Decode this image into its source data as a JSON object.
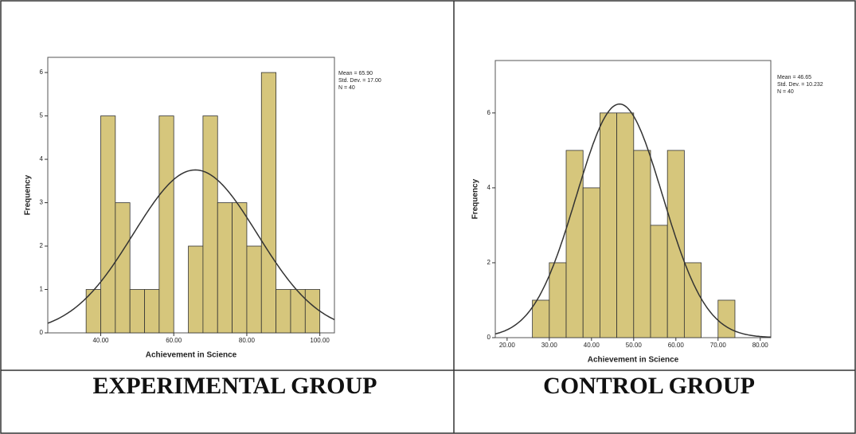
{
  "chart_data": [
    {
      "type": "histogram",
      "caption": "EXPERIMENTAL GROUP",
      "x_label": "Achievement in Science",
      "y_label": "Frequency",
      "bins": [
        36,
        40,
        44,
        48,
        52,
        56,
        60,
        64,
        68,
        72,
        76,
        80,
        84,
        88,
        92,
        96,
        100
      ],
      "values": [
        1,
        5,
        3,
        1,
        1,
        5,
        0,
        2,
        5,
        3,
        3,
        2,
        6,
        1,
        1,
        1
      ],
      "color": "#d6c67c",
      "xlim": [
        25.5,
        104
      ],
      "xticks": [
        {
          "value": 40,
          "label": "40.00"
        },
        {
          "value": 60,
          "label": "60.00"
        },
        {
          "value": 80,
          "label": "80.00"
        },
        {
          "value": 100,
          "label": "100.00"
        }
      ],
      "ylim": [
        0,
        6.35
      ],
      "yticks": [
        0,
        1,
        2,
        3,
        4,
        5,
        6
      ],
      "stats": {
        "mean": {
          "value": 65.9,
          "label": "Mean = 65.90"
        },
        "sd": {
          "value": 17.0,
          "label": "Std. Dev. = 17.00"
        },
        "n": {
          "value": 40,
          "label": "N = 40"
        }
      }
    },
    {
      "type": "histogram",
      "caption": "CONTROL GROUP",
      "x_label": "Achievement in Science",
      "y_label": "Frequency",
      "bins": [
        26,
        30,
        34,
        38,
        42,
        46,
        50,
        54,
        58,
        62,
        66,
        70,
        74
      ],
      "values": [
        1,
        2,
        5,
        4,
        6,
        6,
        5,
        3,
        5,
        2,
        0,
        1
      ],
      "color": "#d6c67c",
      "xlim": [
        17.2,
        82.5
      ],
      "xticks": [
        {
          "value": 20,
          "label": "20.00"
        },
        {
          "value": 30,
          "label": "30.00"
        },
        {
          "value": 40,
          "label": "40.00"
        },
        {
          "value": 50,
          "label": "50.00"
        },
        {
          "value": 60,
          "label": "60.00"
        },
        {
          "value": 70,
          "label": "70.00"
        },
        {
          "value": 80,
          "label": "80.00"
        }
      ],
      "ylim": [
        0,
        7.4
      ],
      "yticks": [
        0,
        2,
        4,
        6
      ],
      "stats": {
        "mean": {
          "value": 46.65,
          "label": "Mean = 46.65"
        },
        "sd": {
          "value": 10.232,
          "label": "Std. Dev. = 10.232"
        },
        "n": {
          "value": 40,
          "label": "N = 40"
        }
      }
    }
  ]
}
